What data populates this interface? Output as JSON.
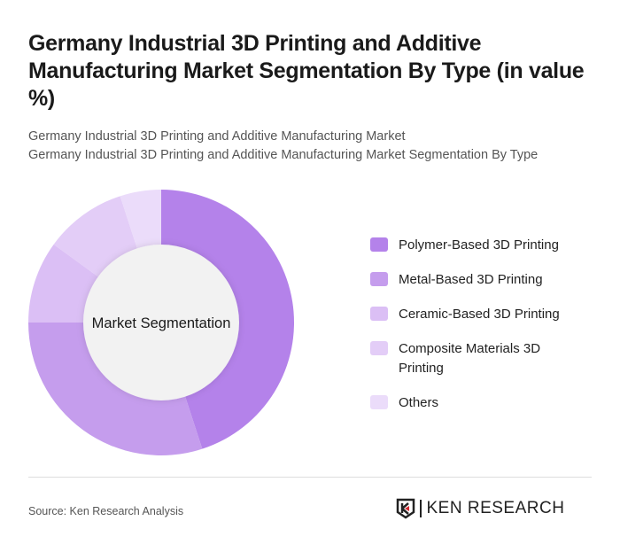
{
  "title": "Germany Industrial 3D Printing and Additive Manufacturing Market Segmentation By Type (in value %)",
  "subtitle1": "Germany Industrial 3D Printing and Additive Manufacturing Market",
  "subtitle2": "Germany Industrial 3D Printing and Additive Manufacturing Market Segmentation By Type",
  "source": "Source: Ken Research Analysis",
  "logo_text": "KEN RESEARCH",
  "chart_data": {
    "type": "pie",
    "variant": "donut",
    "center_label": "Market Segmentation",
    "categories": [
      "Polymer-Based 3D Printing",
      "Metal-Based 3D Printing",
      "Ceramic-Based 3D Printing",
      "Composite Materials 3D Printing",
      "Others"
    ],
    "values": [
      45,
      30,
      10,
      10,
      5
    ],
    "colors": [
      "#b482ea",
      "#c59ded",
      "#dbbff5",
      "#e3cdf7",
      "#ebdcfa"
    ],
    "legend_position": "right"
  }
}
